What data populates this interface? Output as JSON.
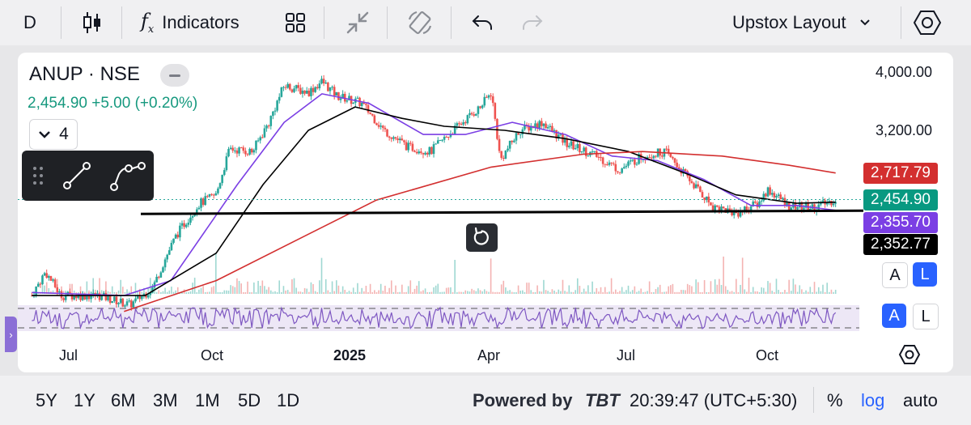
{
  "toolbar": {
    "interval": "D",
    "indicators_label": "Indicators",
    "layout_label": "Upstox Layout"
  },
  "symbol": {
    "name": "ANUP · NSE",
    "price_line": "2,454.90 +5.00 (+0.20%)",
    "indicator_count": "4"
  },
  "price_labels": {
    "ma_red": "2,717.79",
    "last": "2,454.90",
    "ma_purple": "2,355.70",
    "hline": "2,352.77"
  },
  "scale_buttons": {
    "main_a": "A",
    "main_l": "L",
    "osc_a": "A",
    "osc_l": "L"
  },
  "colors": {
    "up": "#26a69a",
    "down": "#ef5350",
    "ma_fast": "#7b3fe4",
    "ma_mid": "#000000",
    "ma_slow": "#d32f2f",
    "last_label": "#089981",
    "red_label": "#d32f2f",
    "purple_label": "#7b3fe4",
    "hline_label": "#000000",
    "accent": "#2962ff",
    "oscillator": "#7e57c2"
  },
  "bottombar": {
    "ranges": [
      "5Y",
      "1Y",
      "6M",
      "3M",
      "1M",
      "5D",
      "1D"
    ],
    "powered_by": "Powered by",
    "brand": "TBT",
    "time": "20:39:47 (UTC+5:30)",
    "percent": "%",
    "log": "log",
    "auto": "auto"
  },
  "chart_data": {
    "type": "candlestick",
    "symbol": "ANUP · NSE",
    "x_tick_labels": [
      "Jul",
      "Oct",
      "2025",
      "Apr",
      "Jul",
      "Oct"
    ],
    "y_tick_labels": [
      "4,000.00",
      "3,200.00"
    ],
    "ylim": [
      1600,
      4200
    ],
    "price_path": [
      [
        "2024-06-01",
        1700
      ],
      [
        "2024-06-10",
        1860
      ],
      [
        "2024-06-20",
        1700
      ],
      [
        "2024-07-15",
        1700
      ],
      [
        "2024-08-05",
        1640
      ],
      [
        "2024-08-20",
        1750
      ],
      [
        "2024-09-05",
        2150
      ],
      [
        "2024-09-20",
        2420
      ],
      [
        "2024-10-01",
        2500
      ],
      [
        "2024-10-10",
        2980
      ],
      [
        "2024-10-25",
        2950
      ],
      [
        "2024-11-05",
        3300
      ],
      [
        "2024-11-15",
        3800
      ],
      [
        "2024-12-01",
        3700
      ],
      [
        "2024-12-10",
        3860
      ],
      [
        "2024-12-20",
        3650
      ],
      [
        "2025-01-05",
        3550
      ],
      [
        "2025-01-20",
        3200
      ],
      [
        "2025-02-05",
        3000
      ],
      [
        "2025-02-20",
        2950
      ],
      [
        "2025-03-10",
        3250
      ],
      [
        "2025-03-25",
        3500
      ],
      [
        "2025-04-01",
        3700
      ],
      [
        "2025-04-07",
        2850
      ],
      [
        "2025-04-20",
        3200
      ],
      [
        "2025-05-05",
        3300
      ],
      [
        "2025-05-20",
        3050
      ],
      [
        "2025-06-10",
        2900
      ],
      [
        "2025-06-25",
        2750
      ],
      [
        "2025-07-10",
        2900
      ],
      [
        "2025-07-25",
        2950
      ],
      [
        "2025-08-10",
        2650
      ],
      [
        "2025-08-25",
        2400
      ],
      [
        "2025-09-10",
        2330
      ],
      [
        "2025-09-25",
        2420
      ],
      [
        "2025-10-01",
        2550
      ],
      [
        "2025-10-15",
        2400
      ],
      [
        "2025-11-01",
        2380
      ],
      [
        "2025-11-15",
        2455
      ]
    ],
    "series": [
      {
        "values": [
          [
            "2024-06-01",
            1720
          ],
          [
            "2024-08-01",
            1700
          ],
          [
            "2024-09-01",
            1800
          ],
          [
            "2024-10-15",
            2600
          ],
          [
            "2024-11-15",
            3300
          ],
          [
            "2024-12-10",
            3680
          ],
          [
            "2025-01-10",
            3550
          ],
          [
            "2025-02-15",
            3150
          ],
          [
            "2025-03-15",
            3150
          ],
          [
            "2025-04-15",
            3300
          ],
          [
            "2025-05-20",
            3150
          ],
          [
            "2025-06-20",
            2900
          ],
          [
            "2025-07-20",
            2850
          ],
          [
            "2025-08-20",
            2650
          ],
          [
            "2025-09-20",
            2400
          ],
          [
            "2025-10-20",
            2400
          ],
          [
            "2025-11-15",
            2356
          ]
        ]
      },
      {
        "values": [
          [
            "2024-06-01",
            1700
          ],
          [
            "2024-08-15",
            1700
          ],
          [
            "2024-10-01",
            2000
          ],
          [
            "2024-11-01",
            2600
          ],
          [
            "2024-12-01",
            3200
          ],
          [
            "2025-01-01",
            3500
          ],
          [
            "2025-02-01",
            3350
          ],
          [
            "2025-03-01",
            3250
          ],
          [
            "2025-04-10",
            3200
          ],
          [
            "2025-05-20",
            3100
          ],
          [
            "2025-07-01",
            2950
          ],
          [
            "2025-08-10",
            2700
          ],
          [
            "2025-09-10",
            2500
          ],
          [
            "2025-10-20",
            2420
          ],
          [
            "2025-11-15",
            2430
          ]
        ]
      },
      {
        "values": [
          [
            "2024-08-01",
            1600
          ],
          [
            "2024-10-01",
            1800
          ],
          [
            "2024-12-01",
            2150
          ],
          [
            "2025-01-15",
            2450
          ],
          [
            "2025-04-01",
            2780
          ],
          [
            "2025-06-01",
            2920
          ],
          [
            "2025-07-10",
            2950
          ],
          [
            "2025-09-01",
            2900
          ],
          [
            "2025-10-15",
            2800
          ],
          [
            "2025-11-15",
            2718
          ]
        ]
      }
    ],
    "horizontal_line": 2352.77,
    "last_price": 2454.9
  }
}
